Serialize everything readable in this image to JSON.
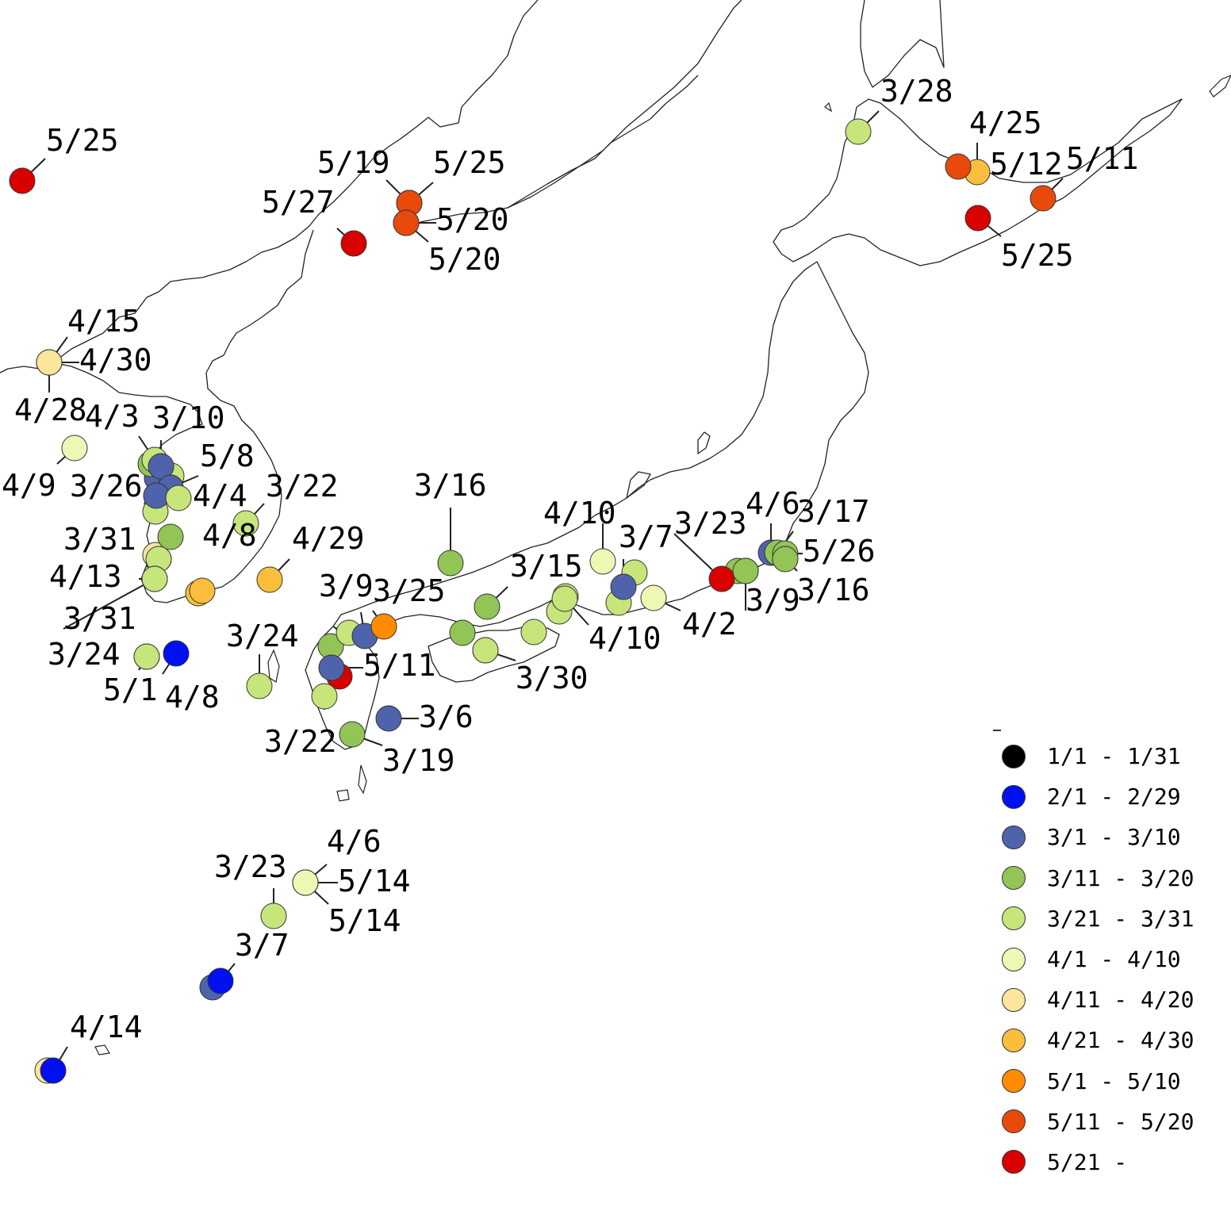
{
  "map_data": {
    "type": "point-map",
    "region": "East Asia",
    "categories": [
      {
        "label": "1/1 - 1/31",
        "color": "#000000"
      },
      {
        "label": "2/1 - 2/29",
        "color": "#0010ee"
      },
      {
        "label": "3/1 - 3/10",
        "color": "#4f63ad"
      },
      {
        "label": "3/11 - 3/20",
        "color": "#93c456"
      },
      {
        "label": "3/21 - 3/31",
        "color": "#c6e57a"
      },
      {
        "label": "4/1 - 4/10",
        "color": "#eef7b4"
      },
      {
        "label": "4/11 - 4/20",
        "color": "#fde59c"
      },
      {
        "label": "4/21 - 4/30",
        "color": "#fbbe3c"
      },
      {
        "label": "5/1 - 5/10",
        "color": "#ff8c00"
      },
      {
        "label": "5/11 - 5/20",
        "color": "#e84a0c"
      },
      {
        "label": "5/21 -",
        "color": "#d90000"
      }
    ]
  },
  "station_labels": [
    "5/25",
    "5/19",
    "5/25",
    "5/27",
    "5/20",
    "5/20",
    "3/28",
    "4/25",
    "5/12",
    "5/11",
    "5/25",
    "4/15",
    "4/30",
    "4/28",
    "4/3",
    "3/10",
    "4/9",
    "5/8",
    "3/26",
    "4/4",
    "3/22",
    "4/8",
    "3/31",
    "4/29",
    "4/13",
    "3/31",
    "3/16",
    "4/10",
    "3/7",
    "3/23",
    "4/6",
    "3/17",
    "5/26",
    "3/9",
    "3/16",
    "3/15",
    "4/10",
    "4/2",
    "3/9",
    "3/25",
    "3/24",
    "5/11",
    "3/24",
    "5/1",
    "4/8",
    "3/30",
    "3/6",
    "3/22",
    "3/19",
    "4/6",
    "5/14",
    "5/14",
    "3/23",
    "3/7",
    "4/14"
  ]
}
